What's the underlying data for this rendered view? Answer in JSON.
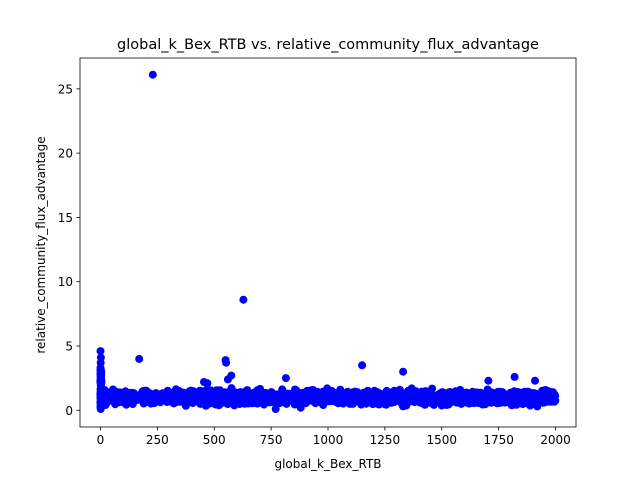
{
  "chart_data": {
    "type": "scatter",
    "title": "global_k_Bex_RTB vs. relative_community_flux_advantage",
    "xlabel": "global_k_Bex_RTB",
    "ylabel": "relative_community_flux_advantage",
    "xlim": [
      -90,
      2090
    ],
    "ylim": [
      -1.3,
      27.4
    ],
    "xticks": [
      0,
      250,
      500,
      750,
      1000,
      1250,
      1500,
      1750,
      2000
    ],
    "xtick_labels": [
      "0",
      "250",
      "500",
      "750",
      "1000",
      "1250",
      "1500",
      "1750",
      "2000"
    ],
    "yticks": [
      0,
      5,
      10,
      15,
      20,
      25
    ],
    "ytick_labels": [
      "0",
      "5",
      "10",
      "15",
      "20",
      "25"
    ],
    "grid": false,
    "marker_color": "#0000ff",
    "band": {
      "x_range": [
        0,
        2000
      ],
      "y_center": 1.0,
      "y_spread": 0.55,
      "point_count": 2000,
      "note_omitted": true
    },
    "points": [
      {
        "x": 230,
        "y": 26.1
      },
      {
        "x": 628,
        "y": 8.6
      },
      {
        "x": 0,
        "y": 4.6
      },
      {
        "x": 2,
        "y": 4.1
      },
      {
        "x": 1,
        "y": 3.7
      },
      {
        "x": 0,
        "y": 3.3
      },
      {
        "x": 3,
        "y": 3.0
      },
      {
        "x": 1,
        "y": 2.6
      },
      {
        "x": 0,
        "y": 2.2
      },
      {
        "x": 2,
        "y": 1.9
      },
      {
        "x": 0,
        "y": 0.3
      },
      {
        "x": 1,
        "y": 0.1
      },
      {
        "x": 170,
        "y": 4.0
      },
      {
        "x": 550,
        "y": 3.9
      },
      {
        "x": 552,
        "y": 3.7
      },
      {
        "x": 575,
        "y": 2.7
      },
      {
        "x": 560,
        "y": 2.4
      },
      {
        "x": 815,
        "y": 2.5
      },
      {
        "x": 1150,
        "y": 3.5
      },
      {
        "x": 1330,
        "y": 3.0
      },
      {
        "x": 1705,
        "y": 2.3
      },
      {
        "x": 1820,
        "y": 2.6
      },
      {
        "x": 1910,
        "y": 2.3
      },
      {
        "x": 770,
        "y": 0.1
      },
      {
        "x": 880,
        "y": 0.2
      },
      {
        "x": 1330,
        "y": 0.3
      },
      {
        "x": 1920,
        "y": 0.3
      },
      {
        "x": 455,
        "y": 2.2
      },
      {
        "x": 470,
        "y": 2.1
      }
    ]
  }
}
